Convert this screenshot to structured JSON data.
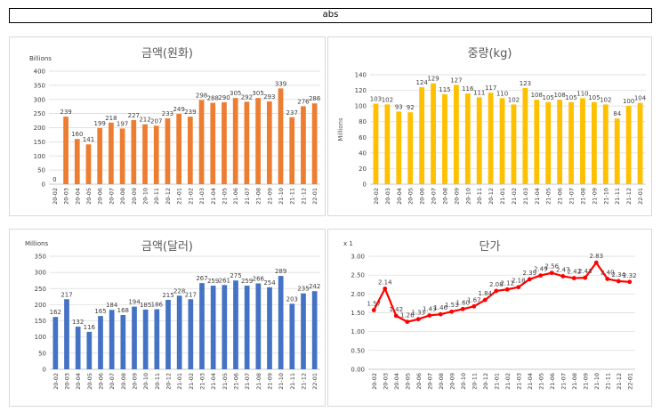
{
  "header": {
    "label": "abs"
  },
  "chart_data": [
    {
      "type": "bar",
      "title": "금액(원화)",
      "ylabel": "Billions",
      "ylim": [
        0,
        400
      ],
      "yticks": [
        0,
        50,
        100,
        150,
        200,
        250,
        300,
        350,
        400
      ],
      "color": "#ED7D31",
      "categories": [
        "20-02",
        "20-03",
        "20-04",
        "20-05",
        "20-06",
        "20-07",
        "20-08",
        "20-09",
        "20-10",
        "20-11",
        "20-12",
        "21-01",
        "21-02",
        "21-03",
        "21-04",
        "21-05",
        "21-06",
        "21-07",
        "21-08",
        "21-09",
        "21-10",
        "21-11",
        "21-12",
        "22-01"
      ],
      "values": [
        0,
        239,
        160,
        141,
        199,
        218,
        197,
        227,
        212,
        207,
        233,
        249,
        239,
        298,
        288,
        290,
        305,
        292,
        305,
        293,
        339,
        237,
        276,
        286
      ],
      "value_labels": [
        "0",
        "239",
        "160",
        "141",
        "199",
        "218",
        "197",
        "227",
        "212",
        "207",
        "233",
        "249",
        "239",
        "298",
        "288",
        "290",
        "305",
        "292",
        "305",
        "293",
        "339",
        "237",
        "276",
        "286"
      ],
      "ytick_labels": [
        "0",
        "50",
        "100",
        "150",
        "200",
        "250",
        "300",
        "350",
        "400"
      ]
    },
    {
      "type": "bar",
      "title": "중량(kg)",
      "ylabel": "Millions",
      "ylim": [
        0,
        140
      ],
      "yticks": [
        0,
        20,
        40,
        60,
        80,
        100,
        120,
        140
      ],
      "color": "#FFC000",
      "categories": [
        "20-02",
        "20-03",
        "20-04",
        "20-05",
        "20-06",
        "20-07",
        "20-08",
        "20-09",
        "20-10",
        "20-11",
        "20-12",
        "21-01",
        "21-02",
        "21-03",
        "21-04",
        "21-05",
        "21-06",
        "21-07",
        "21-08",
        "21-09",
        "21-10",
        "21-11",
        "21-12",
        "22-01"
      ],
      "values": [
        103,
        102,
        93,
        92,
        124,
        129,
        115,
        127,
        116,
        111,
        117,
        110,
        102,
        123,
        108,
        105,
        108,
        105,
        110,
        105,
        102,
        84,
        100,
        104
      ],
      "value_labels": [
        "103",
        "102",
        "93",
        "92",
        "124",
        "129",
        "115",
        "127",
        "116",
        "111",
        "117",
        "110",
        "102",
        "123",
        "108",
        "105",
        "108",
        "105",
        "110",
        "105",
        "102",
        "84",
        "100",
        "104"
      ],
      "ytick_labels": [
        "0",
        "20",
        "40",
        "60",
        "80",
        "100",
        "120",
        "140"
      ]
    },
    {
      "type": "bar",
      "title": "금액(달러)",
      "ylabel": "Millions",
      "ylim": [
        0,
        350
      ],
      "yticks": [
        0,
        50,
        100,
        150,
        200,
        250,
        300,
        350
      ],
      "color": "#4472C4",
      "categories": [
        "20-02",
        "20-03",
        "20-04",
        "20-05",
        "20-06",
        "20-07",
        "20-08",
        "20-09",
        "20-10",
        "20-11",
        "20-12",
        "21-01",
        "21-02",
        "21-03",
        "21-04",
        "21-05",
        "21-06",
        "21-07",
        "21-08",
        "21-09",
        "21-10",
        "21-11",
        "21-12",
        "22-01"
      ],
      "values": [
        162,
        217,
        132,
        116,
        165,
        184,
        168,
        194,
        185,
        186,
        215,
        228,
        217,
        267,
        259,
        261,
        275,
        259,
        266,
        254,
        289,
        203,
        235,
        242
      ],
      "value_labels": [
        "162",
        "217",
        "132",
        "116",
        "165",
        "184",
        "168",
        "194",
        "185",
        "186",
        "215",
        "228",
        "217",
        "267",
        "259",
        "261",
        "275",
        "259",
        "266",
        "254",
        "289",
        "203",
        "235",
        "242"
      ],
      "ytick_labels": [
        "0",
        "50",
        "100",
        "150",
        "200",
        "250",
        "300",
        "350"
      ]
    },
    {
      "type": "line",
      "title": "단가",
      "ylabel": "x 1",
      "ylim": [
        0,
        3.0
      ],
      "yticks": [
        0,
        0.5,
        1.0,
        1.5,
        2.0,
        2.5,
        3.0
      ],
      "color": "#FF0000",
      "categories": [
        "20-02",
        "20-03",
        "20-04",
        "20-05",
        "20-06",
        "20-07",
        "20-08",
        "20-09",
        "20-10",
        "20-11",
        "20-12",
        "21-01",
        "21-02",
        "21-03",
        "21-04",
        "21-05",
        "21-06",
        "21-07",
        "21-08",
        "21-09",
        "21-10",
        "21-11",
        "21-12",
        "22-01"
      ],
      "values": [
        1.57,
        2.14,
        1.42,
        1.26,
        1.33,
        1.43,
        1.46,
        1.53,
        1.6,
        1.67,
        1.84,
        2.08,
        2.12,
        2.18,
        2.39,
        2.49,
        2.56,
        2.47,
        2.42,
        2.43,
        2.83,
        2.4,
        2.34,
        2.32
      ],
      "value_labels": [
        "1.57",
        "2.14",
        "1.42",
        "1.26",
        "1.33",
        "1.43",
        "1.46",
        "1.53",
        "1.60",
        "1.67",
        "1.84",
        "2.08",
        "2.12",
        "2.18",
        "2.39",
        "2.49",
        "2.56",
        "2.47",
        "2.42",
        "2.43",
        "2.83",
        "2.40",
        "2.34",
        "2.32"
      ],
      "ytick_labels": [
        "0.00",
        "0.50",
        "1.00",
        "1.50",
        "2.00",
        "2.50",
        "3.00"
      ]
    }
  ]
}
